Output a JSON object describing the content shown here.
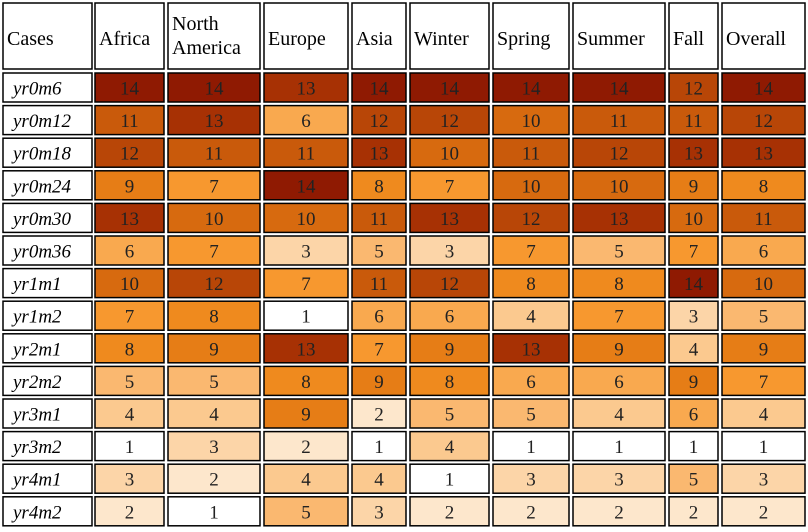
{
  "chart_data": {
    "type": "heatmap",
    "corner_label": "Cases",
    "columns": [
      [
        "Africa"
      ],
      [
        "North",
        "America"
      ],
      [
        "Europe"
      ],
      [
        "Asia"
      ],
      [
        "Winter"
      ],
      [
        "Spring"
      ],
      [
        "Summer"
      ],
      [
        "Fall"
      ],
      [
        "Overall"
      ]
    ],
    "rows": [
      "yr0m6",
      "yr0m12",
      "yr0m18",
      "yr0m24",
      "yr0m30",
      "yr0m36",
      "yr1m1",
      "yr1m2",
      "yr2m1",
      "yr2m2",
      "yr3m1",
      "yr3m2",
      "yr4m1",
      "yr4m2"
    ],
    "values": [
      [
        14,
        14,
        13,
        14,
        14,
        14,
        14,
        12,
        14
      ],
      [
        11,
        13,
        6,
        12,
        12,
        10,
        11,
        11,
        12
      ],
      [
        12,
        11,
        11,
        13,
        10,
        11,
        12,
        13,
        13
      ],
      [
        9,
        7,
        14,
        8,
        7,
        10,
        10,
        9,
        8
      ],
      [
        13,
        10,
        10,
        11,
        13,
        12,
        13,
        10,
        11
      ],
      [
        6,
        7,
        3,
        5,
        3,
        7,
        5,
        7,
        6
      ],
      [
        10,
        12,
        7,
        11,
        12,
        8,
        8,
        14,
        10
      ],
      [
        7,
        8,
        1,
        6,
        6,
        4,
        7,
        3,
        5
      ],
      [
        8,
        9,
        13,
        7,
        9,
        13,
        9,
        4,
        9
      ],
      [
        5,
        5,
        8,
        9,
        8,
        6,
        6,
        9,
        7
      ],
      [
        4,
        4,
        9,
        2,
        5,
        5,
        4,
        6,
        4
      ],
      [
        1,
        3,
        2,
        1,
        4,
        1,
        1,
        1,
        1
      ],
      [
        3,
        2,
        4,
        4,
        1,
        3,
        3,
        5,
        3
      ],
      [
        2,
        1,
        5,
        3,
        2,
        2,
        2,
        2,
        2
      ]
    ],
    "value_range": [
      1,
      14
    ],
    "color_scale": {
      "1": "#ffffff",
      "2": "#fde7cc",
      "3": "#fcd5a8",
      "4": "#fbc98f",
      "5": "#fab870",
      "6": "#f9a94f",
      "7": "#f7982f",
      "8": "#ef8a1e",
      "9": "#e67d16",
      "10": "#d76a0f",
      "11": "#c95a0b",
      "12": "#b84607",
      "13": "#a73104",
      "14": "#8f1a02"
    }
  }
}
